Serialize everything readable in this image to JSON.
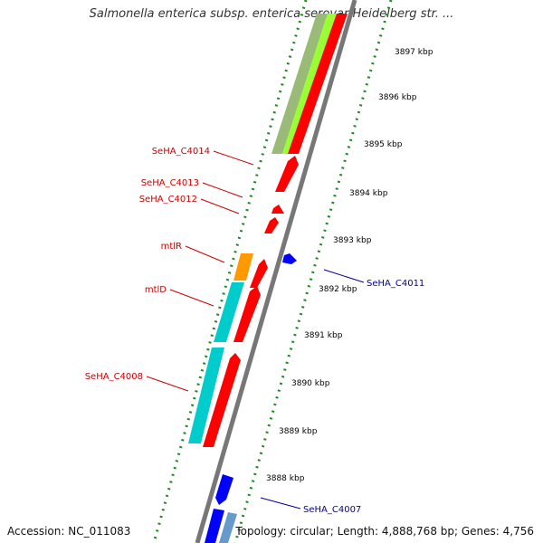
{
  "title": "Salmonella enterica subsp. enterica serovar Heidelberg str. ...",
  "footer": {
    "accession": "Accession: NC_011083",
    "topology": "Topology: circular; Length: 4,888,768 bp; Genes: 4,756"
  },
  "ticks": [
    "3897 kbp",
    "3896 kbp",
    "3895 kbp",
    "3894 kbp",
    "3893 kbp",
    "3892 kbp",
    "3891 kbp",
    "3890 kbp",
    "3889 kbp",
    "3888 kbp"
  ],
  "gene_labels_left": [
    "SeHA_C4014",
    "SeHA_C4013",
    "SeHA_C4012",
    "mtlR",
    "mtlD",
    "SeHA_C4008"
  ],
  "gene_labels_right": [
    "SeHA_C4011",
    "SeHA_C4007"
  ],
  "colors": {
    "forward_gene": "#ff0000",
    "reverse_gene": "#0000ff",
    "cog_cyan": "#00cccc",
    "cog_orange": "#ff9900",
    "cog_green": "#99ff33",
    "cog_olive": "#99bb77",
    "backbone": "#888888",
    "dotted": "#228822",
    "label_left": "#cc0000",
    "label_right": "#000099"
  }
}
